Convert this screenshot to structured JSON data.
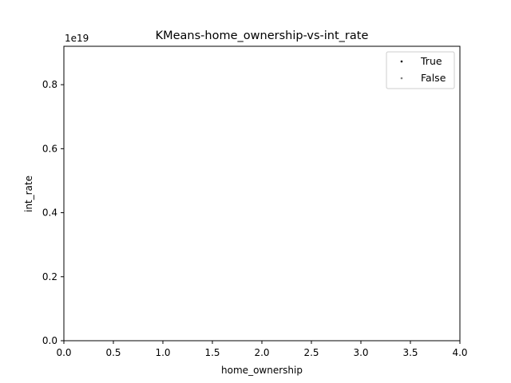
{
  "chart_data": {
    "type": "scatter",
    "title": "KMeans-home_ownership-vs-int_rate",
    "xlabel": "home_ownership",
    "ylabel": "int_rate",
    "xlim": [
      0.0,
      4.0
    ],
    "ylim": [
      0.0,
      0.92
    ],
    "y_offset_text": "1e19",
    "x_ticks": [
      0.0,
      0.5,
      1.0,
      1.5,
      2.0,
      2.5,
      3.0,
      3.5,
      4.0
    ],
    "x_tick_labels": [
      "0.0",
      "0.5",
      "1.0",
      "1.5",
      "2.0",
      "2.5",
      "3.0",
      "3.5",
      "4.0"
    ],
    "y_ticks": [
      0.0,
      0.2,
      0.4,
      0.6,
      0.8
    ],
    "y_tick_labels": [
      "0.0",
      "0.2",
      "0.4",
      "0.6",
      "0.8"
    ],
    "grid": false,
    "legend_position": "top-right",
    "series": [
      {
        "name": "True",
        "color": "#000000",
        "points": []
      },
      {
        "name": "False",
        "color": "#808080",
        "points": []
      }
    ]
  }
}
